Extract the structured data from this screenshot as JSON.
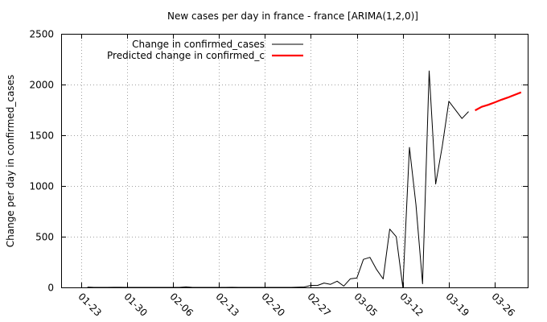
{
  "chart_data": {
    "type": "line",
    "title": "New cases per day in france - france [ARIMA(1,2,0)]",
    "xlabel": "",
    "ylabel": "Change per day in confirmed_cases",
    "ylim": [
      0,
      2500
    ],
    "xlim": [
      "2020-01-20",
      "2020-03-31"
    ],
    "x_ticks": [
      "01-23",
      "01-30",
      "02-06",
      "02-13",
      "02-20",
      "02-27",
      "03-05",
      "03-12",
      "03-19",
      "03-26"
    ],
    "y_ticks": [
      0,
      500,
      1000,
      1500,
      2000,
      2500
    ],
    "grid": true,
    "legend_position": "top-left",
    "series": [
      {
        "name": "Change in confirmed_cases",
        "color": "#000000",
        "points": [
          [
            "2020-01-24",
            3
          ],
          [
            "2020-01-25",
            0
          ],
          [
            "2020-01-26",
            0
          ],
          [
            "2020-01-27",
            0
          ],
          [
            "2020-01-28",
            1
          ],
          [
            "2020-01-29",
            1
          ],
          [
            "2020-01-30",
            0
          ],
          [
            "2020-01-31",
            0
          ],
          [
            "2020-02-01",
            0
          ],
          [
            "2020-02-02",
            0
          ],
          [
            "2020-02-03",
            0
          ],
          [
            "2020-02-04",
            0
          ],
          [
            "2020-02-05",
            0
          ],
          [
            "2020-02-06",
            0
          ],
          [
            "2020-02-07",
            0
          ],
          [
            "2020-02-08",
            5
          ],
          [
            "2020-02-09",
            0
          ],
          [
            "2020-02-10",
            0
          ],
          [
            "2020-02-11",
            0
          ],
          [
            "2020-02-12",
            0
          ],
          [
            "2020-02-13",
            0
          ],
          [
            "2020-02-14",
            0
          ],
          [
            "2020-02-15",
            1
          ],
          [
            "2020-02-16",
            0
          ],
          [
            "2020-02-17",
            0
          ],
          [
            "2020-02-18",
            0
          ],
          [
            "2020-02-19",
            0
          ],
          [
            "2020-02-20",
            0
          ],
          [
            "2020-02-21",
            0
          ],
          [
            "2020-02-22",
            0
          ],
          [
            "2020-02-23",
            0
          ],
          [
            "2020-02-24",
            0
          ],
          [
            "2020-02-25",
            2
          ],
          [
            "2020-02-26",
            4
          ],
          [
            "2020-02-27",
            20
          ],
          [
            "2020-02-28",
            19
          ],
          [
            "2020-02-29",
            43
          ],
          [
            "2020-03-01",
            30
          ],
          [
            "2020-03-02",
            61
          ],
          [
            "2020-03-03",
            13
          ],
          [
            "2020-03-04",
            84
          ],
          [
            "2020-03-05",
            92
          ],
          [
            "2020-03-06",
            276
          ],
          [
            "2020-03-07",
            296
          ],
          [
            "2020-03-08",
            177
          ],
          [
            "2020-03-09",
            83
          ],
          [
            "2020-03-10",
            575
          ],
          [
            "2020-03-11",
            499
          ],
          [
            "2020-03-12",
            0
          ],
          [
            "2020-03-13",
            1380
          ],
          [
            "2020-03-14",
            815
          ],
          [
            "2020-03-15",
            36
          ],
          [
            "2020-03-16",
            2134
          ],
          [
            "2020-03-17",
            1019
          ],
          [
            "2020-03-18",
            1391
          ],
          [
            "2020-03-19",
            1835
          ],
          [
            "2020-03-20",
            1751
          ],
          [
            "2020-03-21",
            1665
          ],
          [
            "2020-03-22",
            1733
          ]
        ]
      },
      {
        "name": "Predicted change in confirmed_c",
        "color": "#ff0000",
        "points": [
          [
            "2020-03-23",
            1745
          ],
          [
            "2020-03-24",
            1780
          ],
          [
            "2020-03-25",
            1800
          ],
          [
            "2020-03-26",
            1825
          ],
          [
            "2020-03-27",
            1850
          ],
          [
            "2020-03-28",
            1872
          ],
          [
            "2020-03-29",
            1898
          ],
          [
            "2020-03-30",
            1923
          ]
        ]
      }
    ]
  }
}
